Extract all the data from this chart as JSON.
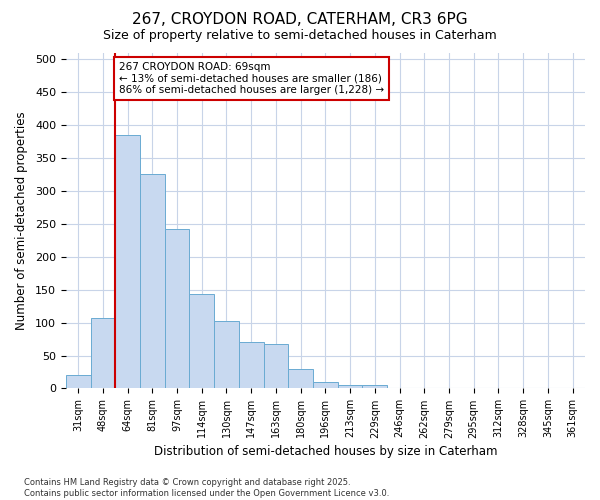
{
  "title1": "267, CROYDON ROAD, CATERHAM, CR3 6PG",
  "title2": "Size of property relative to semi-detached houses in Caterham",
  "xlabel": "Distribution of semi-detached houses by size in Caterham",
  "ylabel": "Number of semi-detached properties",
  "categories": [
    "31sqm",
    "48sqm",
    "64sqm",
    "81sqm",
    "97sqm",
    "114sqm",
    "130sqm",
    "147sqm",
    "163sqm",
    "180sqm",
    "196sqm",
    "213sqm",
    "229sqm",
    "246sqm",
    "262sqm",
    "279sqm",
    "295sqm",
    "312sqm",
    "328sqm",
    "345sqm",
    "361sqm"
  ],
  "values": [
    20,
    107,
    385,
    325,
    242,
    143,
    102,
    70,
    68,
    30,
    10,
    6,
    6,
    0,
    0,
    0,
    0,
    0,
    0,
    0,
    0
  ],
  "bar_color": "#c8d9f0",
  "bar_edge_color": "#6aabd2",
  "vline_x_index": 2,
  "vline_color": "#cc0000",
  "annotation_text": "267 CROYDON ROAD: 69sqm\n← 13% of semi-detached houses are smaller (186)\n86% of semi-detached houses are larger (1,228) →",
  "annotation_box_color": "#ffffff",
  "annotation_box_edge": "#cc0000",
  "footer": "Contains HM Land Registry data © Crown copyright and database right 2025.\nContains public sector information licensed under the Open Government Licence v3.0.",
  "bg_color": "#ffffff",
  "plot_bg_color": "#ffffff",
  "grid_color": "#c8d4e8",
  "ylim": [
    0,
    510
  ],
  "yticks": [
    0,
    50,
    100,
    150,
    200,
    250,
    300,
    350,
    400,
    450,
    500
  ]
}
